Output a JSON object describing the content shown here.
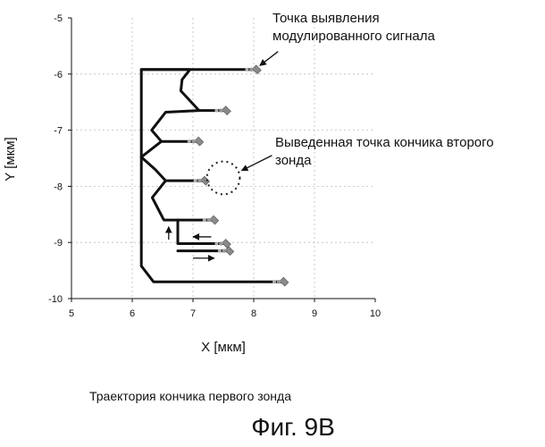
{
  "chart_data": {
    "type": "line",
    "title": "",
    "xlabel": "X [мкм]",
    "ylabel": "Y [мкм]",
    "xlim": [
      5,
      10
    ],
    "ylim": [
      -10,
      -5
    ],
    "x_ticks": [
      "5",
      "6",
      "7",
      "8",
      "9",
      "10"
    ],
    "y_ticks": [
      "-5",
      "-6",
      "-7",
      "-8",
      "-9",
      "-10"
    ],
    "grid": true,
    "legend": "none",
    "series": [
      {
        "points": [
          [
            8.05,
            -5.92
          ],
          [
            6.15,
            -5.92
          ],
          [
            6.15,
            -9.42
          ],
          [
            6.35,
            -9.7
          ],
          [
            8.5,
            -9.7
          ]
        ]
      },
      {
        "points": [
          [
            6.15,
            -5.92
          ],
          [
            6.95,
            -5.92
          ],
          [
            6.82,
            -6.1
          ],
          [
            6.8,
            -6.3
          ],
          [
            7.1,
            -6.65
          ],
          [
            7.55,
            -6.65
          ]
        ]
      },
      {
        "points": [
          [
            7.1,
            -6.65
          ],
          [
            6.55,
            -6.68
          ],
          [
            6.32,
            -7.0
          ],
          [
            6.48,
            -7.2
          ],
          [
            7.1,
            -7.2
          ]
        ]
      },
      {
        "points": [
          [
            6.48,
            -7.2
          ],
          [
            6.15,
            -7.48
          ],
          [
            6.38,
            -7.7
          ],
          [
            6.55,
            -7.9
          ],
          [
            7.2,
            -7.9
          ]
        ]
      },
      {
        "points": [
          [
            6.55,
            -7.9
          ],
          [
            6.33,
            -8.2
          ],
          [
            6.52,
            -8.6
          ],
          [
            7.35,
            -8.6
          ]
        ]
      },
      {
        "points": [
          [
            6.75,
            -8.6
          ],
          [
            6.75,
            -9.02
          ],
          [
            7.55,
            -9.02
          ]
        ]
      },
      {
        "points": [
          [
            6.75,
            -9.15
          ],
          [
            7.6,
            -9.15
          ]
        ]
      }
    ],
    "marker_points": [
      [
        8.05,
        -5.92
      ],
      [
        7.55,
        -6.65
      ],
      [
        7.1,
        -7.2
      ],
      [
        7.2,
        -7.9
      ],
      [
        7.35,
        -8.6
      ],
      [
        7.55,
        -9.02
      ],
      [
        7.6,
        -9.15
      ],
      [
        8.5,
        -9.7
      ]
    ],
    "probe_circle": {
      "center": [
        7.5,
        -7.85
      ],
      "radius": 0.27
    },
    "arrows": [
      {
        "from": [
          6.6,
          -8.95
        ],
        "to": [
          6.6,
          -8.72
        ]
      },
      {
        "from": [
          7.3,
          -8.9
        ],
        "to": [
          7.0,
          -8.9
        ]
      },
      {
        "from": [
          7.0,
          -9.28
        ],
        "to": [
          7.35,
          -9.28
        ]
      }
    ],
    "annotations": [
      {
        "lines": [
          "Точка выявления",
          "модулированного сигнала"
        ],
        "arrow_from": [
          8.4,
          -5.6
        ],
        "arrow_to": [
          8.1,
          -5.85
        ]
      },
      {
        "lines": [
          "Выведенная точка кончика второго",
          "зонда"
        ],
        "arrow_from": [
          8.3,
          -7.45
        ],
        "arrow_to": [
          7.8,
          -7.72
        ]
      }
    ]
  },
  "caption": "Траектория кончика первого зонда",
  "figure_label": "Фиг. 9B"
}
